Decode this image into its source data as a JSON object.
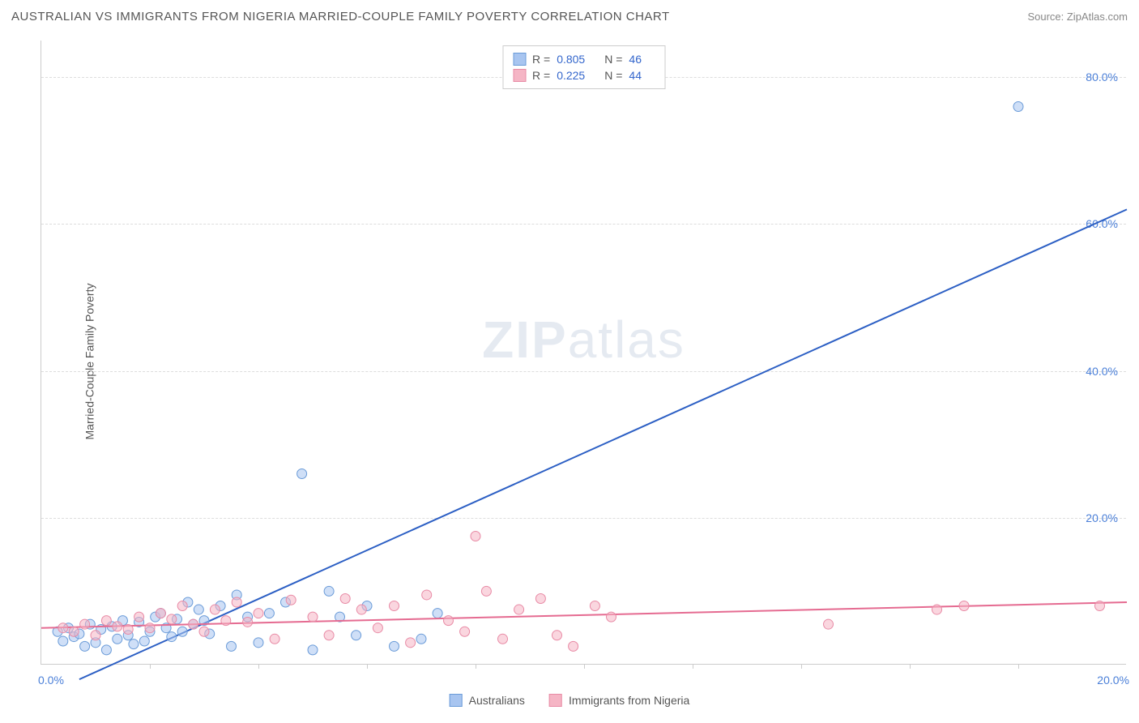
{
  "header": {
    "title": "AUSTRALIAN VS IMMIGRANTS FROM NIGERIA MARRIED-COUPLE FAMILY POVERTY CORRELATION CHART",
    "source": "Source: ZipAtlas.com"
  },
  "chart": {
    "type": "scatter",
    "y_axis_label": "Married-Couple Family Poverty",
    "watermark": "ZIPatlas",
    "background_color": "#ffffff",
    "grid_color": "#dddddd",
    "axis_color": "#cccccc",
    "x_domain": [
      0,
      20
    ],
    "y_domain": [
      0,
      85
    ],
    "y_ticks": [
      {
        "value": 20,
        "label": "20.0%"
      },
      {
        "value": 40,
        "label": "40.0%"
      },
      {
        "value": 60,
        "label": "60.0%"
      },
      {
        "value": 80,
        "label": "80.0%"
      }
    ],
    "x_ticks_minor": [
      2,
      4,
      6,
      8,
      10,
      12,
      14,
      16,
      18
    ],
    "x_label_min": "0.0%",
    "x_label_max": "20.0%",
    "tick_label_color": "#4a7fd8",
    "tick_label_fontsize": 14,
    "marker_radius": 6,
    "marker_opacity": 0.55,
    "line_width": 2,
    "series": [
      {
        "name": "Australians",
        "color_fill": "#a8c5f0",
        "color_stroke": "#6a9bd8",
        "line_color": "#2c5fc4",
        "line": {
          "x1": 0.7,
          "y1": -2,
          "x2": 20,
          "y2": 62
        },
        "points": [
          [
            0.3,
            4.5
          ],
          [
            0.4,
            3.2
          ],
          [
            0.5,
            5.0
          ],
          [
            0.6,
            3.8
          ],
          [
            0.7,
            4.2
          ],
          [
            0.8,
            2.5
          ],
          [
            0.9,
            5.5
          ],
          [
            1.0,
            3.0
          ],
          [
            1.1,
            4.8
          ],
          [
            1.2,
            2.0
          ],
          [
            1.3,
            5.2
          ],
          [
            1.4,
            3.5
          ],
          [
            1.5,
            6.0
          ],
          [
            1.6,
            4.0
          ],
          [
            1.7,
            2.8
          ],
          [
            1.8,
            5.8
          ],
          [
            1.9,
            3.2
          ],
          [
            2.0,
            4.5
          ],
          [
            2.1,
            6.5
          ],
          [
            2.2,
            7.0
          ],
          [
            2.3,
            5.0
          ],
          [
            2.4,
            3.8
          ],
          [
            2.5,
            6.2
          ],
          [
            2.6,
            4.5
          ],
          [
            2.7,
            8.5
          ],
          [
            2.8,
            5.5
          ],
          [
            2.9,
            7.5
          ],
          [
            3.0,
            6.0
          ],
          [
            3.1,
            4.2
          ],
          [
            3.3,
            8.0
          ],
          [
            3.5,
            2.5
          ],
          [
            3.6,
            9.5
          ],
          [
            3.8,
            6.5
          ],
          [
            4.0,
            3.0
          ],
          [
            4.2,
            7.0
          ],
          [
            4.5,
            8.5
          ],
          [
            4.8,
            26.0
          ],
          [
            5.0,
            2.0
          ],
          [
            5.3,
            10.0
          ],
          [
            5.5,
            6.5
          ],
          [
            5.8,
            4.0
          ],
          [
            6.0,
            8.0
          ],
          [
            6.5,
            2.5
          ],
          [
            7.0,
            3.5
          ],
          [
            7.3,
            7.0
          ],
          [
            18.0,
            76.0
          ]
        ]
      },
      {
        "name": "Immigrants from Nigeria",
        "color_fill": "#f5b5c5",
        "color_stroke": "#e88aa5",
        "line_color": "#e56b91",
        "line": {
          "x1": 0,
          "y1": 5.0,
          "x2": 20,
          "y2": 8.5
        },
        "points": [
          [
            0.4,
            5.0
          ],
          [
            0.6,
            4.5
          ],
          [
            0.8,
            5.5
          ],
          [
            1.0,
            4.0
          ],
          [
            1.2,
            6.0
          ],
          [
            1.4,
            5.2
          ],
          [
            1.6,
            4.8
          ],
          [
            1.8,
            6.5
          ],
          [
            2.0,
            5.0
          ],
          [
            2.2,
            7.0
          ],
          [
            2.4,
            6.2
          ],
          [
            2.6,
            8.0
          ],
          [
            2.8,
            5.5
          ],
          [
            3.0,
            4.5
          ],
          [
            3.2,
            7.5
          ],
          [
            3.4,
            6.0
          ],
          [
            3.6,
            8.5
          ],
          [
            3.8,
            5.8
          ],
          [
            4.0,
            7.0
          ],
          [
            4.3,
            3.5
          ],
          [
            4.6,
            8.8
          ],
          [
            5.0,
            6.5
          ],
          [
            5.3,
            4.0
          ],
          [
            5.6,
            9.0
          ],
          [
            5.9,
            7.5
          ],
          [
            6.2,
            5.0
          ],
          [
            6.5,
            8.0
          ],
          [
            6.8,
            3.0
          ],
          [
            7.1,
            9.5
          ],
          [
            7.5,
            6.0
          ],
          [
            7.8,
            4.5
          ],
          [
            8.0,
            17.5
          ],
          [
            8.2,
            10.0
          ],
          [
            8.5,
            3.5
          ],
          [
            8.8,
            7.5
          ],
          [
            9.2,
            9.0
          ],
          [
            9.5,
            4.0
          ],
          [
            9.8,
            2.5
          ],
          [
            10.2,
            8.0
          ],
          [
            10.5,
            6.5
          ],
          [
            14.5,
            5.5
          ],
          [
            16.5,
            7.5
          ],
          [
            17.0,
            8.0
          ],
          [
            19.5,
            8.0
          ]
        ]
      }
    ]
  },
  "stats_box": {
    "rows": [
      {
        "swatch_fill": "#a8c5f0",
        "swatch_stroke": "#6a9bd8",
        "r_label": "R =",
        "r": "0.805",
        "n_label": "N =",
        "n": "46"
      },
      {
        "swatch_fill": "#f5b5c5",
        "swatch_stroke": "#e88aa5",
        "r_label": "R =",
        "r": "0.225",
        "n_label": "N =",
        "n": "44"
      }
    ]
  },
  "legend": {
    "items": [
      {
        "swatch_fill": "#a8c5f0",
        "swatch_stroke": "#6a9bd8",
        "label": "Australians"
      },
      {
        "swatch_fill": "#f5b5c5",
        "swatch_stroke": "#e88aa5",
        "label": "Immigrants from Nigeria"
      }
    ]
  }
}
